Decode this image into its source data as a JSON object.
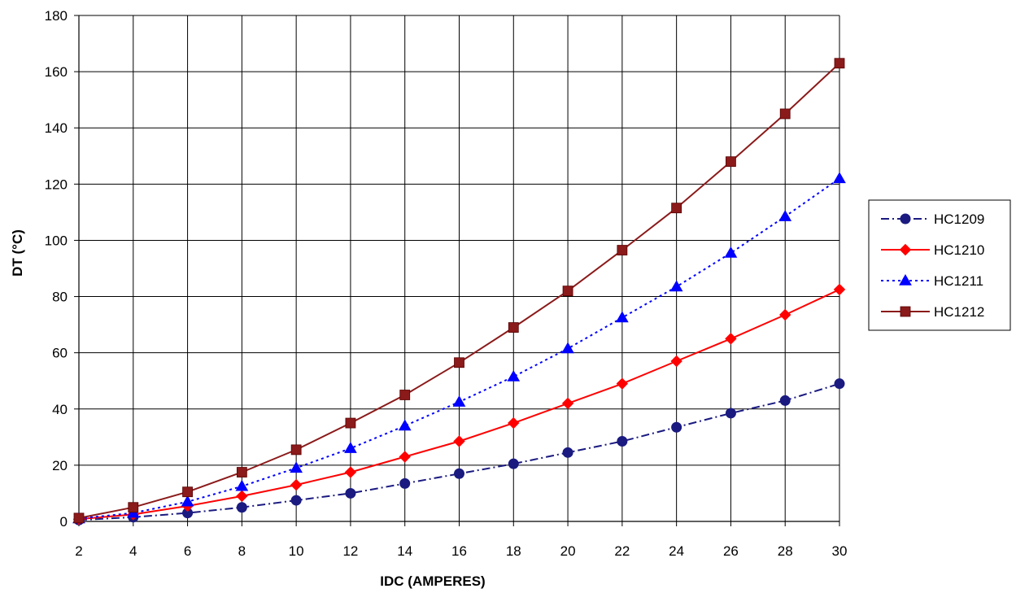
{
  "chart_data": {
    "type": "line",
    "title": "",
    "xlabel": "IDC (AMPERES)",
    "ylabel": "DT (°C)",
    "x": [
      2,
      4,
      6,
      8,
      10,
      12,
      14,
      16,
      18,
      20,
      22,
      24,
      26,
      28,
      30
    ],
    "xlim": [
      2,
      30
    ],
    "ylim": [
      0,
      180
    ],
    "x_ticks": [
      2,
      4,
      6,
      8,
      10,
      12,
      14,
      16,
      18,
      20,
      22,
      24,
      26,
      28,
      30
    ],
    "y_ticks": [
      0,
      20,
      40,
      60,
      80,
      100,
      120,
      140,
      160,
      180
    ],
    "grid": true,
    "legend_position": "right",
    "series": [
      {
        "name": "HC1209",
        "color": "#1a1a80",
        "marker": "circle",
        "line_style": "dash-dot",
        "values": [
          0.5,
          1.5,
          3,
          5,
          7.5,
          10,
          13.5,
          17,
          20.5,
          24.5,
          28.5,
          33.5,
          38.5,
          43,
          49
        ]
      },
      {
        "name": "HC1210",
        "color": "#ff0000",
        "marker": "diamond",
        "line_style": "solid",
        "values": [
          0.8,
          2.5,
          5.5,
          9,
          13,
          17.5,
          23,
          28.5,
          35,
          42,
          49,
          57,
          65,
          73.5,
          82.5
        ]
      },
      {
        "name": "HC1211",
        "color": "#0000ff",
        "marker": "triangle",
        "line_style": "dotted",
        "values": [
          1,
          3,
          7,
          12.5,
          19,
          26,
          34,
          42.5,
          51.5,
          61.5,
          72.5,
          83.5,
          95.5,
          108.5,
          122
        ]
      },
      {
        "name": "HC1212",
        "color": "#8b1a1a",
        "marker": "square",
        "line_style": "solid",
        "values": [
          1.2,
          5,
          10.5,
          17.5,
          25.5,
          35,
          45,
          56.5,
          69,
          82,
          96.5,
          111.5,
          128,
          145,
          163
        ]
      }
    ]
  }
}
